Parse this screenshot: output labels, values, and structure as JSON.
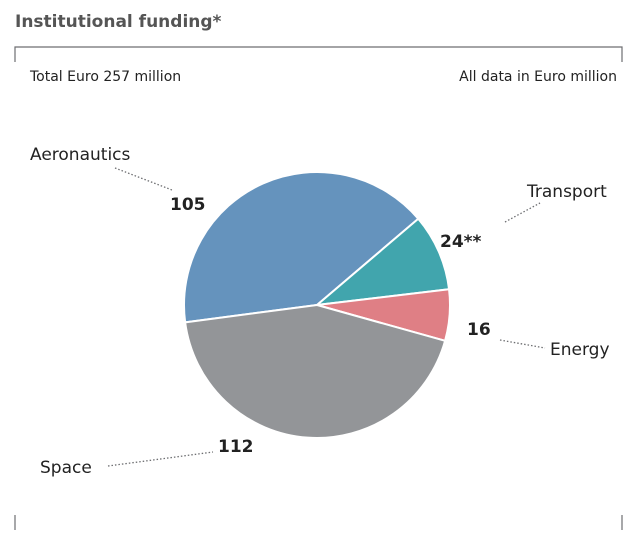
{
  "chart_data": {
    "type": "pie",
    "title": "Institutional funding*",
    "subtitle": "Total Euro 257 million",
    "note": "All data in Euro million",
    "categories": [
      "Aeronautics",
      "Transport",
      "Energy",
      "Space"
    ],
    "values": [
      105,
      24,
      16,
      112
    ],
    "value_labels": [
      "105",
      "24**",
      "16",
      "112"
    ],
    "colors": [
      "#6593bd",
      "#41a5ad",
      "#df7f85",
      "#939598"
    ]
  }
}
